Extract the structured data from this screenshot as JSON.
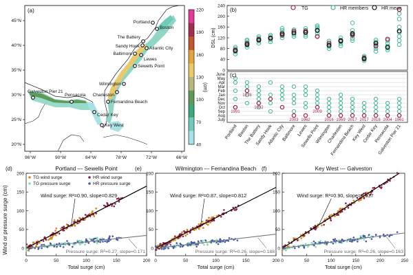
{
  "map": {
    "panel_label": "(a)",
    "lon_ticks": [
      "96°W",
      "90°W",
      "84°W",
      "78°W",
      "72°W",
      "66°W"
    ],
    "lat_ticks": [
      "45°N",
      "40°N",
      "35°N",
      "30°N",
      "25°N",
      "20°N"
    ],
    "colorbar_ticks": [
      "220",
      "190",
      "160",
      "130",
      "100",
      "70",
      "40"
    ],
    "colorbar_label": "(cm)",
    "colorbar_colors": [
      "#e5399a",
      "#a02f4c",
      "#c2562e",
      "#e2a43d",
      "#e9c96b",
      "#b9b67a",
      "#5f9a59",
      "#3ca87c",
      "#6fcab9",
      "#a8e1e4"
    ],
    "stations": [
      "Portland",
      "Boston",
      "The Battery",
      "Sandy Hook",
      "Atlantic City",
      "Baltimore",
      "Lewes",
      "Sewells Point",
      "Wilmington",
      "Charleston",
      "Fernandina Beach",
      "Cedar Key",
      "Pensacola",
      "Galveston Pier 21",
      "Key West"
    ]
  },
  "colors": {
    "tg": "#9c2a55",
    "hr_members": "#45b89b",
    "hr_mean": "#111111",
    "month_label": "#9c2a55",
    "tg_wind": "#d9892a",
    "tg_pressure": "#8fd9be",
    "hr_wind": "#8e1e4c",
    "hr_pressure": "#4a57a8"
  },
  "chart_data": [
    {
      "panel": "(b)",
      "type": "scatter",
      "ylabel": "DSL (cm)",
      "ylim": [
        0,
        240
      ],
      "yticks": [
        0,
        40,
        80,
        120,
        160,
        200,
        240
      ],
      "legend": [
        "TG",
        "HR members",
        "HR mean"
      ],
      "legend_position": "top-right",
      "categories": [
        "Portland",
        "Boston",
        "The Battery",
        "Sandy Hook",
        "Atlantic City",
        "Baltimore",
        "Lewes",
        "Sewells Point",
        "Wilmington",
        "Charleston",
        "Fernandina Beach",
        "Key West",
        "Cedar Key",
        "Pensacola",
        "Galveston Pier 21"
      ],
      "tg": [
        75,
        100,
        115,
        120,
        130,
        145,
        145,
        125,
        100,
        110,
        130,
        45,
        90,
        115,
        225
      ],
      "hr_mean": [
        72,
        95,
        112,
        118,
        135,
        138,
        140,
        148,
        92,
        108,
        135,
        42,
        100,
        85,
        145
      ],
      "hr_members": [
        [
          60,
          68,
          75,
          80,
          85
        ],
        [
          85,
          92,
          98,
          102,
          108,
          112
        ],
        [
          100,
          108,
          115,
          120,
          125
        ],
        [
          105,
          112,
          118,
          125,
          130
        ],
        [
          120,
          128,
          135,
          140,
          148,
          155
        ],
        [
          125,
          132,
          140,
          145,
          150
        ],
        [
          125,
          132,
          140,
          148,
          155
        ],
        [
          125,
          135,
          145,
          155,
          160,
          165
        ],
        [
          80,
          88,
          95,
          100,
          108
        ],
        [
          90,
          98,
          105,
          112,
          120
        ],
        [
          110,
          118,
          128,
          138,
          148,
          175
        ],
        [
          35,
          40,
          45,
          48,
          52
        ],
        [
          70,
          80,
          88,
          95,
          105,
          112
        ],
        [
          75,
          82,
          90,
          100,
          110
        ],
        [
          95,
          110,
          125,
          140,
          160,
          190,
          210
        ]
      ]
    },
    {
      "panel": "(c)",
      "type": "scatter",
      "ylabel": "",
      "months": [
        "July",
        "Aug",
        "Sep",
        "Oct",
        "Nov",
        "Dec",
        "Jan",
        "Feb",
        "Mar",
        "Apr",
        "May",
        "June"
      ],
      "categories": [
        "Portland",
        "Boston",
        "The Battery",
        "Sandy Hook",
        "Atlantic City",
        "Baltimore",
        "Lewes",
        "Sewells Point",
        "Wilmington",
        "Charleston",
        "Fernandina Beach",
        "Key West",
        "Cedar Key",
        "Pensacola",
        "Galveston Pier 21"
      ],
      "tg_month_index": [
        3,
        7,
        4,
        5,
        3,
        1,
        1,
        3,
        1,
        1,
        1,
        1,
        1,
        1,
        1
      ],
      "tg_year_labels": [
        "1991",
        "1978",
        "1992",
        "",
        "",
        "2003",
        "1962",
        "2009",
        "2016",
        "1959",
        "2017",
        "2017",
        "2018",
        "2004",
        "1961"
      ],
      "hr_member_months": [
        [
          3,
          5,
          7,
          9,
          10
        ],
        [
          4,
          6,
          7,
          8,
          9
        ],
        [
          3,
          4,
          5,
          6,
          7,
          8
        ],
        [
          2,
          4,
          5,
          6,
          9
        ],
        [
          3,
          5,
          6,
          7,
          8
        ],
        [
          2,
          4,
          5,
          6,
          8
        ],
        [
          3,
          4,
          6,
          7,
          8
        ],
        [
          3,
          4,
          5,
          6,
          7
        ],
        [
          1,
          2,
          3,
          4,
          5
        ],
        [
          2,
          3,
          4,
          5,
          6
        ],
        [
          2,
          3,
          4,
          5
        ],
        [
          1,
          2,
          3,
          4
        ],
        [
          1,
          2,
          3,
          4,
          5
        ],
        [
          1,
          2,
          3,
          4
        ],
        [
          1,
          2,
          3,
          4,
          5
        ]
      ]
    },
    {
      "panel": "(d)",
      "type": "scatter",
      "title": "Portland --- Sewells Point",
      "xlabel": "Total surge (cm)",
      "ylabel": "Wind or pressure surge (cm)",
      "xlim": [
        0,
        200
      ],
      "ylim": [
        -20,
        200
      ],
      "xticks": [
        0,
        50,
        100,
        150,
        200
      ],
      "yticks": [
        0,
        50,
        100,
        150,
        200
      ],
      "legend": [
        "TG wind surge",
        "HR wind surge",
        "TG pressure surge",
        "HR pressure surge"
      ],
      "legend_position": "top-left",
      "wind_fit": {
        "r2": 0.9,
        "slope": 0.829,
        "text": "Wind surge: R²=0.90, slope=0.829"
      },
      "pressure_fit": {
        "r2": 0.27,
        "slope": 0.171,
        "text": "Pressure surge: R²=0.27, slope=0.171"
      },
      "x_max_cloud": 160
    },
    {
      "panel": "(e)",
      "type": "scatter",
      "title": "Wilmington --- Fernandina Beach",
      "xlabel": "Total surge (cm)",
      "ylabel": "",
      "xlim": [
        0,
        200
      ],
      "ylim": [
        -20,
        200
      ],
      "xticks": [
        0,
        50,
        100,
        150,
        200
      ],
      "yticks": [
        0,
        50,
        100,
        150,
        200
      ],
      "wind_fit": {
        "r2": 0.87,
        "slope": 0.812,
        "text": "Wind surge: R²=0.87, slope=0.812"
      },
      "pressure_fit": {
        "r2": 0.26,
        "slope": 0.188,
        "text": "Pressure surge: R²=0.26, slope=0.188"
      },
      "x_max_cloud": 140
    },
    {
      "panel": "(f)",
      "type": "scatter",
      "title": "Key West --- Galveston",
      "xlabel": "Total surge (cm)",
      "ylabel": "",
      "xlim": [
        0,
        250
      ],
      "ylim": [
        -20,
        200
      ],
      "xticks": [
        0,
        50,
        100,
        150,
        200,
        250
      ],
      "yticks": [
        0,
        50,
        100,
        150,
        200
      ],
      "wind_fit": {
        "r2": 0.9,
        "slope": 0.837,
        "text": "Wind surge: R²=0.90, slope=0.837"
      },
      "pressure_fit": {
        "r2": 0.26,
        "slope": 0.163,
        "text": "Pressure surge: R²=0.26, slope=0.163"
      },
      "x_max_cloud": 235
    }
  ]
}
